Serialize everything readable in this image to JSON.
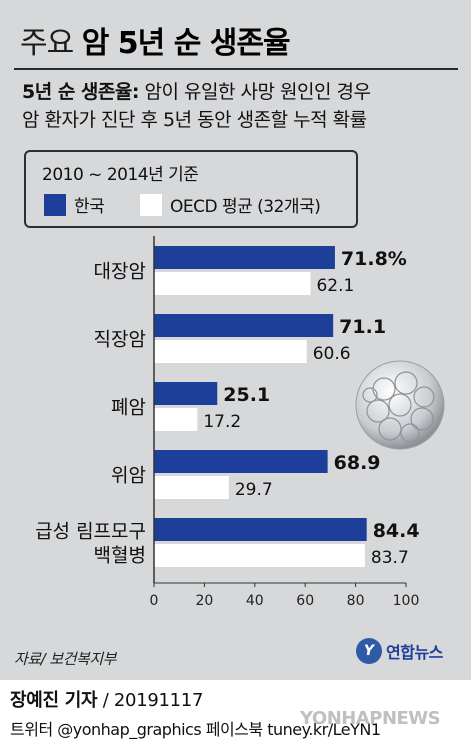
{
  "title": {
    "light": "주요",
    "bold": "암 5년 순 생존율"
  },
  "definition": {
    "term": "5년 순 생존율:",
    "line1_rest": "암이 유일한 사망 원인인 경우",
    "line2": "암 환자가 진단 후 5년 동안 생존할 누적 확률"
  },
  "legend": {
    "period": "2010 ~ 2014년 기준",
    "korea": "한국",
    "oecd": "OECD 평균 (32개국)"
  },
  "chart_data": {
    "type": "bar",
    "orientation": "horizontal",
    "categories": [
      [
        "대장암"
      ],
      [
        "직장암"
      ],
      [
        "폐암"
      ],
      [
        "위암"
      ],
      [
        "급성 림프모구",
        "백혈병"
      ]
    ],
    "series": [
      {
        "name": "한국",
        "values": [
          71.8,
          71.1,
          25.1,
          68.9,
          84.4
        ],
        "labels": [
          "71.8%",
          "71.1",
          "25.1",
          "68.9",
          "84.4"
        ],
        "color": "#1e3f99"
      },
      {
        "name": "OECD 평균 (32개국)",
        "values": [
          62.1,
          60.6,
          17.2,
          29.7,
          83.7
        ],
        "labels": [
          "62.1",
          "60.6",
          "17.2",
          "29.7",
          "83.7"
        ],
        "color": "#ffffff"
      }
    ],
    "xlim": [
      0,
      100
    ],
    "xticks": [
      0,
      20,
      40,
      60,
      80,
      100
    ],
    "xlabel": "",
    "ylabel": "",
    "grid": false
  },
  "source": "자료/ 보건복지부",
  "logo": {
    "mark": "Y",
    "text": "연합뉴스"
  },
  "byline": {
    "reporter": "장예진 기자",
    "date": "/ 20191117"
  },
  "social": "트위터 @yonhap_graphics  페이스북 tuney.kr/LeYN1",
  "watermark": "YONHAPNEWS"
}
